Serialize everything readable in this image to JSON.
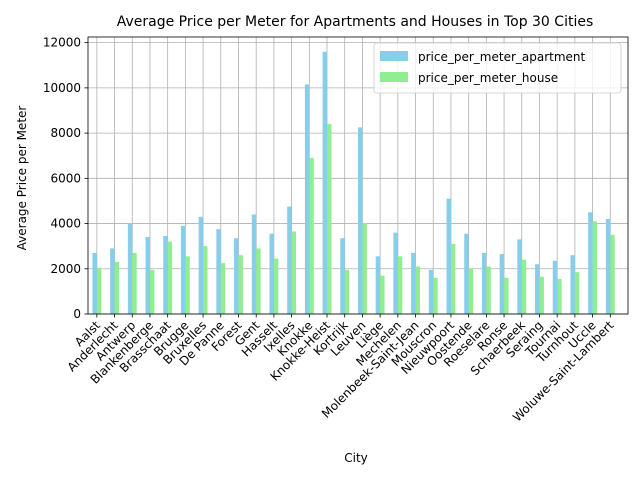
{
  "chart_data": {
    "type": "bar",
    "title": "Average Price per Meter for Apartments and Houses in Top 30 Cities",
    "xlabel": "City",
    "ylabel": "Average Price per Meter",
    "ylim": [
      0,
      12250
    ],
    "yticks": [
      0,
      2000,
      4000,
      6000,
      8000,
      10000,
      12000
    ],
    "grid": true,
    "legend_position": "top-right",
    "categories": [
      "Aalst",
      "Anderlecht",
      "Antwerp",
      "Blankenberge",
      "Brasschaat",
      "Brugge",
      "Bruxelles",
      "De Panne",
      "Forest",
      "Gent",
      "Hasselt",
      "Ixelles",
      "Knokke",
      "Knokke-Heist",
      "Kortrijk",
      "Leuven",
      "Liège",
      "Mechelen",
      "Molenbeek-Saint-Jean",
      "Mouscron",
      "Nieuwpoort",
      "Oostende",
      "Roeselare",
      "Ronse",
      "Schaerbeek",
      "Seraing",
      "Tournai",
      "Turnhout",
      "Uccle",
      "Woluwe-Saint-Lambert"
    ],
    "series": [
      {
        "name": "price_per_meter_apartment",
        "color": "#87ceeb",
        "values": [
          2700,
          2900,
          4000,
          3400,
          3450,
          3900,
          4300,
          3750,
          3350,
          4400,
          3550,
          4750,
          10150,
          11600,
          3350,
          8250,
          2550,
          3600,
          2700,
          1950,
          5100,
          3550,
          2700,
          2650,
          3300,
          2200,
          2350,
          2600,
          4500,
          4200
        ]
      },
      {
        "name": "price_per_meter_house",
        "color": "#90ee90",
        "values": [
          2050,
          2300,
          2700,
          1950,
          3200,
          2550,
          3000,
          2250,
          2600,
          2900,
          2450,
          3650,
          6900,
          8400,
          1950,
          4000,
          1700,
          2550,
          2100,
          1600,
          3100,
          2000,
          2100,
          1600,
          2400,
          1650,
          1550,
          1850,
          4100,
          3500
        ]
      }
    ]
  }
}
